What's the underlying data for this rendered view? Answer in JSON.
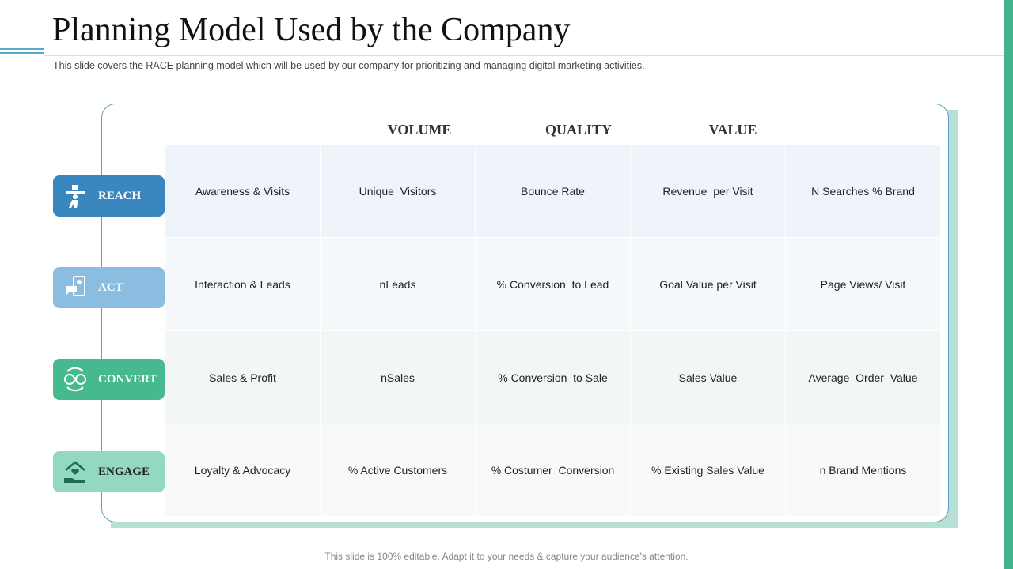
{
  "header": {
    "title": "Planning Model Used by the Company",
    "subtitle": "This slide covers the RACE planning model which will be used by our company for prioritizing and managing digital marketing activities."
  },
  "table": {
    "columns": [
      "VOLUME",
      "QUALITY",
      "VALUE"
    ],
    "rows": [
      {
        "stage": "REACH",
        "cells": [
          "Awareness & Visits",
          "Unique  Visitors",
          "Bounce Rate",
          "Revenue  per Visit",
          "N Searches % Brand"
        ]
      },
      {
        "stage": "ACT",
        "cells": [
          "Interaction & Leads",
          "nLeads",
          "% Conversion  to Lead",
          "Goal Value per Visit",
          "Page Views/ Visit"
        ]
      },
      {
        "stage": "CONVERT",
        "cells": [
          "Sales & Profit",
          "nSales",
          "% Conversion  to Sale",
          "Sales Value",
          "Average  Order  Value"
        ]
      },
      {
        "stage": "ENGAGE",
        "cells": [
          "Loyalty & Advocacy",
          "% Active Customers",
          "% Costumer  Conversion",
          "% Existing Sales Value",
          "n Brand Mentions"
        ]
      }
    ]
  },
  "footer": "This slide is 100% editable. Adapt it to your needs & capture your audience's attention."
}
